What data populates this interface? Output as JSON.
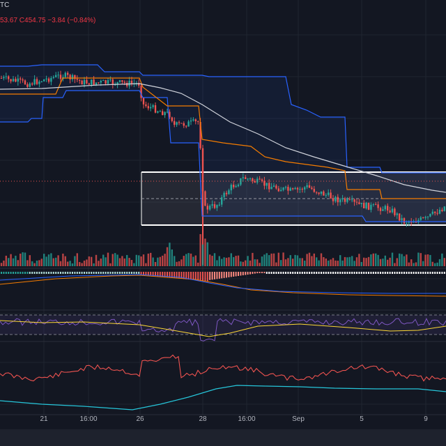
{
  "legend": {
    "symbol_fragment": "TC",
    "ohlc_text": "53.67  C454.75  −3.84 (−0.84%)"
  },
  "colors": {
    "background": "#131722",
    "grid": "#1f2430",
    "up": "#26a69a",
    "down": "#ef5350",
    "donchian_band": "#2962ff",
    "kijun": "#f57c00",
    "ma": "#d1d4dc",
    "rsi": "#7e57c2",
    "rsi_ma": "#fdd835",
    "osc_red": "#ef5350",
    "osc_cyan": "#26c6da"
  },
  "chart_data": {
    "type": "candlestick",
    "x_tick_labels": [
      "21",
      "16:00",
      "26",
      "28",
      "16:00",
      "Sep",
      "5",
      "9"
    ],
    "annotations": {
      "range_box": "horizontal channel drawn around recent consolidation",
      "price_line": "dotted red last-price line"
    },
    "panes": [
      "price with bands and moving average",
      "volume",
      "histogram oscillator",
      "RSI band",
      "oscillator red",
      "oscillator cyan"
    ]
  }
}
